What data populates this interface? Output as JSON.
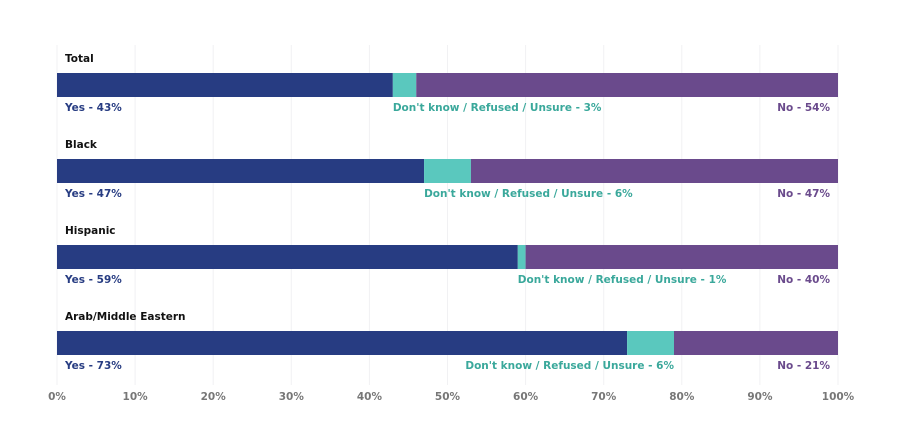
{
  "chart_data": {
    "type": "stacked-bar-horizontal",
    "categories": [
      "Total",
      "Black",
      "Hispanic",
      "Arab/Middle Eastern"
    ],
    "series": [
      {
        "color": "#273c82",
        "values": [
          43,
          47,
          59,
          73
        ],
        "value_labels": [
          "Yes - 43%",
          "Yes - 47%",
          "Yes - 59%",
          "Yes - 73%"
        ]
      },
      {
        "color": "#5ac8be",
        "values": [
          3,
          6,
          1,
          6
        ],
        "value_labels": [
          "Don't know / Refused / Unsure - 3%",
          "Don't know / Refused / Unsure - 6%",
          "Don't know / Refused / Unsure - 1%",
          "Don't know / Refused / Unsure - 6%"
        ]
      },
      {
        "color": "#6a4a8c",
        "values": [
          54,
          47,
          40,
          21
        ],
        "value_labels": [
          "No - 54%",
          "No - 47%",
          "No - 40%",
          "No - 21%"
        ]
      }
    ],
    "xlim": [
      0,
      100
    ],
    "xticks": [
      {
        "value": 0,
        "label": "0%"
      },
      {
        "value": 10,
        "label": "10%"
      },
      {
        "value": 20,
        "label": "20%"
      },
      {
        "value": 30,
        "label": "30%"
      },
      {
        "value": 40,
        "label": "40%"
      },
      {
        "value": 50,
        "label": "50%"
      },
      {
        "value": 60,
        "label": "60%"
      },
      {
        "value": 70,
        "label": "70%"
      },
      {
        "value": 80,
        "label": "80%"
      },
      {
        "value": 90,
        "label": "90%"
      },
      {
        "value": 100,
        "label": "100%"
      }
    ],
    "grid": true
  }
}
